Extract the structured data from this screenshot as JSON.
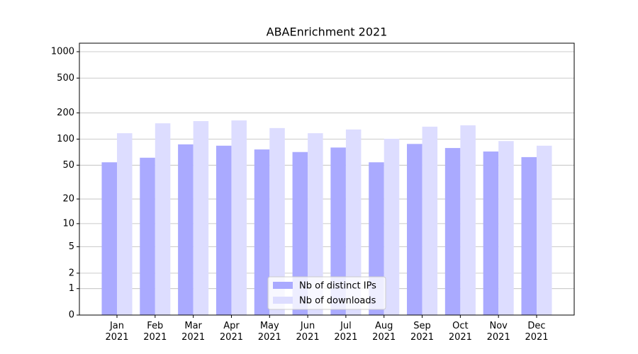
{
  "chart_data": {
    "type": "bar",
    "title": "ABAEnrichment 2021",
    "categories": [
      "Jan\n2021",
      "Feb\n2021",
      "Mar\n2021",
      "Apr\n2021",
      "May\n2021",
      "Jun\n2021",
      "Jul\n2021",
      "Aug\n2021",
      "Sep\n2021",
      "Oct\n2021",
      "Nov\n2021",
      "Dec\n2021"
    ],
    "series": [
      {
        "name": "Nb of distinct IPs",
        "color": "#aaaaff",
        "values": [
          54,
          61,
          87,
          84,
          76,
          71,
          80,
          54,
          88,
          79,
          72,
          62
        ]
      },
      {
        "name": "Nb of downloads",
        "color": "#ddddff",
        "values": [
          117,
          152,
          161,
          164,
          134,
          117,
          129,
          101,
          139,
          144,
          95,
          84
        ]
      }
    ],
    "yscale": "log1p",
    "ylim": [
      0,
      1250
    ],
    "yticks": [
      0,
      1,
      2,
      5,
      10,
      20,
      50,
      100,
      200,
      500,
      1000
    ],
    "grid": true,
    "legend": "lower center"
  }
}
